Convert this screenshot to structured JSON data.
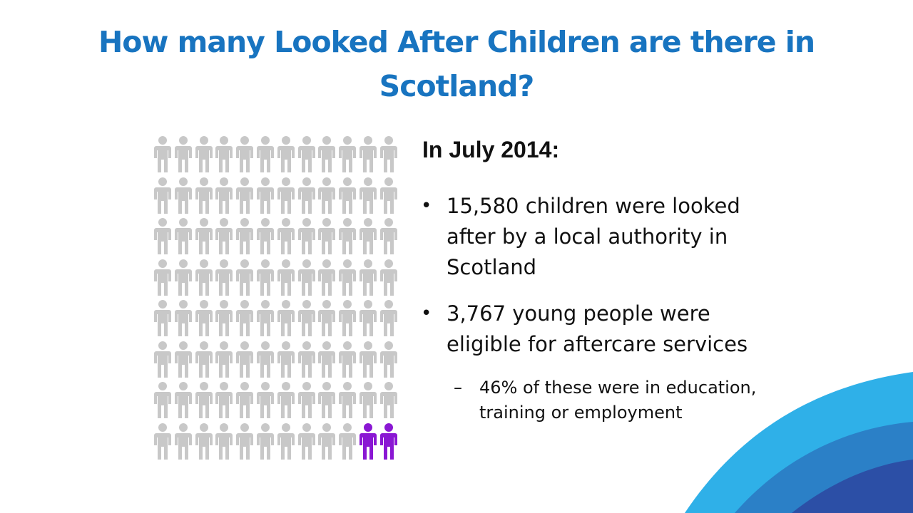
{
  "slide": {
    "title": "How many Looked After Children are there in Scotland?",
    "subheading": "In July 2014:",
    "bullets": [
      {
        "marker": "•",
        "text": "15,580 children were looked after by a local authority in Scotland"
      },
      {
        "marker": "•",
        "text": " 3,767 young people were eligible for aftercare services",
        "sub": [
          {
            "marker": "–",
            "text": "46% of these were in education, training or employment"
          }
        ]
      }
    ]
  },
  "infographic": {
    "icon": "person-icon",
    "rows": 8,
    "columns": 12,
    "highlighted_count": 2,
    "colors": {
      "default": "#c8c8c8",
      "highlight": "#8a17d3"
    }
  },
  "colors": {
    "title": "#1874c0",
    "swoosh_light": "#2fb0e8",
    "swoosh_mid": "#2b80c7",
    "swoosh_dark": "#2c4fa6"
  }
}
